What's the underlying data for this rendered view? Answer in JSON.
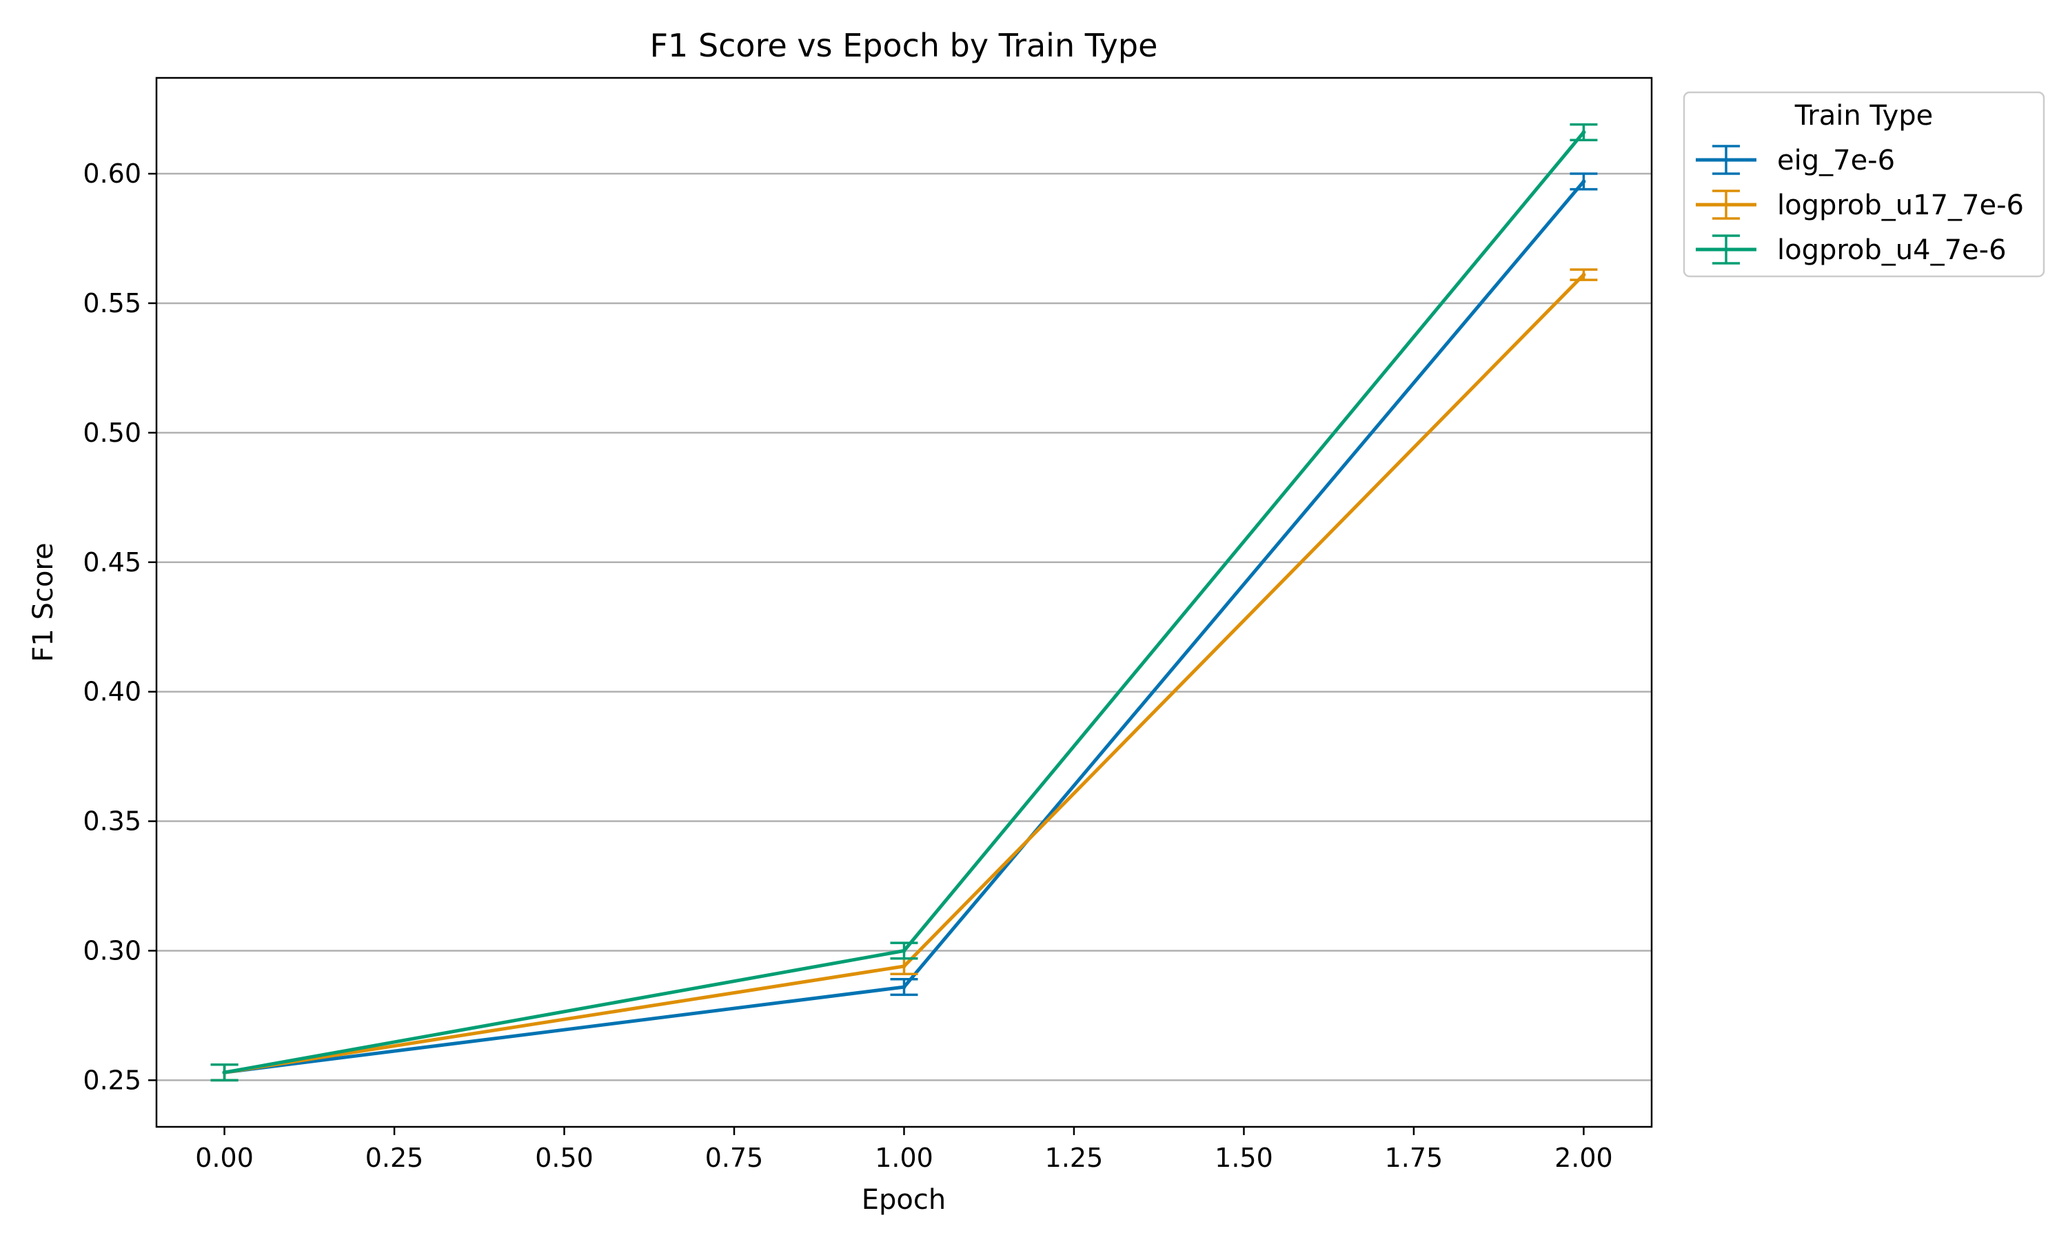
{
  "chart_data": {
    "type": "line",
    "title": "F1 Score vs Epoch by Train Type",
    "xlabel": "Epoch",
    "ylabel": "F1 Score",
    "xlim": [
      -0.1,
      2.1
    ],
    "ylim": [
      0.232,
      0.637
    ],
    "x_ticks": [
      0.0,
      0.25,
      0.5,
      0.75,
      1.0,
      1.25,
      1.5,
      1.75,
      2.0
    ],
    "x_tick_labels": [
      "0.00",
      "0.25",
      "0.50",
      "0.75",
      "1.00",
      "1.25",
      "1.50",
      "1.75",
      "2.00"
    ],
    "y_ticks": [
      0.25,
      0.3,
      0.35,
      0.4,
      0.45,
      0.5,
      0.55,
      0.6
    ],
    "y_tick_labels": [
      "0.25",
      "0.30",
      "0.35",
      "0.40",
      "0.45",
      "0.50",
      "0.55",
      "0.60"
    ],
    "grid": "horizontal",
    "legend": {
      "title": "Train Type",
      "placement": "outside upper right"
    },
    "x": [
      0,
      1,
      2
    ],
    "series": [
      {
        "name": "eig_7e-6",
        "color": "#0173b2",
        "values": [
          0.253,
          0.286,
          0.597
        ],
        "errors": [
          0.003,
          0.003,
          0.003
        ]
      },
      {
        "name": "logprob_u17_7e-6",
        "color": "#de8f05",
        "values": [
          0.253,
          0.294,
          0.561
        ],
        "errors": [
          0.003,
          0.003,
          0.002
        ]
      },
      {
        "name": "logprob_u4_7e-6",
        "color": "#029e73",
        "values": [
          0.253,
          0.3,
          0.616
        ],
        "errors": [
          0.003,
          0.003,
          0.003
        ]
      }
    ]
  }
}
